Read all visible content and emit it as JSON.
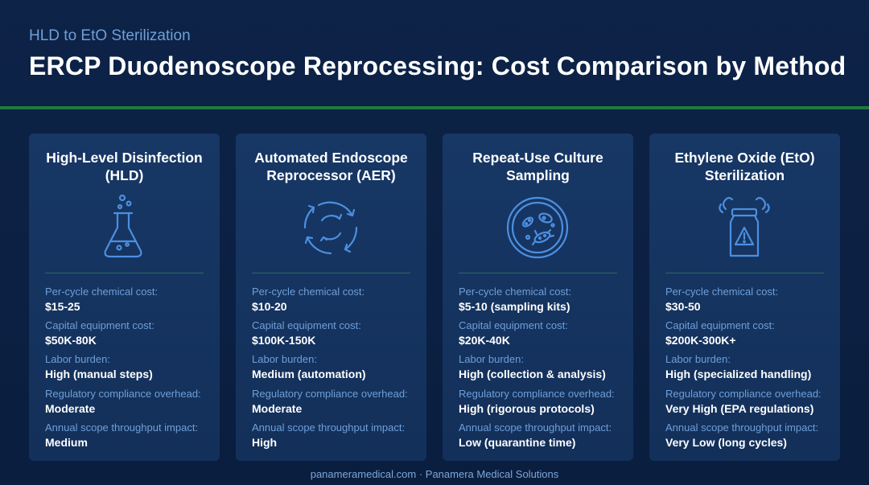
{
  "header": {
    "subtitle": "HLD to EtO Sterilization",
    "title": "ERCP Duodenoscope Reprocessing: Cost Comparison by Method"
  },
  "colors": {
    "background": "#0b1f42",
    "card": "#163462",
    "accent_green": "#1f7a3f",
    "label_blue": "#6f9fd8",
    "icon_blue": "#4d8fe0"
  },
  "cards": [
    {
      "title": "High-Level Disinfection (HLD)",
      "icon": "flask-icon",
      "metrics": [
        {
          "label": "Per-cycle chemical cost:",
          "value": "$15-25"
        },
        {
          "label": "Capital equipment cost:",
          "value": "$50K-80K"
        },
        {
          "label": "Labor burden:",
          "value": "High (manual steps)"
        },
        {
          "label": "Regulatory compliance overhead:",
          "value": "Moderate"
        },
        {
          "label": "Annual scope throughput impact:",
          "value": "Medium"
        }
      ]
    },
    {
      "title": "Automated Endoscope Reprocessor (AER)",
      "icon": "recycle-cycle-icon",
      "metrics": [
        {
          "label": "Per-cycle chemical cost:",
          "value": "$10-20"
        },
        {
          "label": "Capital equipment cost:",
          "value": "$100K-150K"
        },
        {
          "label": "Labor burden:",
          "value": "Medium (automation)"
        },
        {
          "label": "Regulatory compliance overhead:",
          "value": "Moderate"
        },
        {
          "label": "Annual scope throughput impact:",
          "value": "High"
        }
      ]
    },
    {
      "title": "Repeat-Use Culture Sampling",
      "icon": "petri-dish-icon",
      "metrics": [
        {
          "label": "Per-cycle chemical cost:",
          "value": "$5-10 (sampling kits)"
        },
        {
          "label": "Capital equipment cost:",
          "value": "$20K-40K"
        },
        {
          "label": "Labor burden:",
          "value": "High (collection & analysis)"
        },
        {
          "label": "Regulatory compliance overhead:",
          "value": "High (rigorous protocols)"
        },
        {
          "label": "Annual scope throughput impact:",
          "value": "Low (quarantine time)"
        }
      ]
    },
    {
      "title": "Ethylene Oxide (EtO) Sterilization",
      "icon": "hazard-canister-icon",
      "metrics": [
        {
          "label": "Per-cycle chemical cost:",
          "value": "$30-50"
        },
        {
          "label": "Capital equipment cost:",
          "value": "$200K-300K+"
        },
        {
          "label": "Labor burden:",
          "value": "High (specialized handling)"
        },
        {
          "label": "Regulatory compliance overhead:",
          "value": "Very High (EPA regulations)"
        },
        {
          "label": "Annual scope throughput impact:",
          "value": "Very Low (long cycles)"
        }
      ]
    }
  ],
  "footer": {
    "text": "panameramedical.com · Panamera Medical Solutions"
  }
}
